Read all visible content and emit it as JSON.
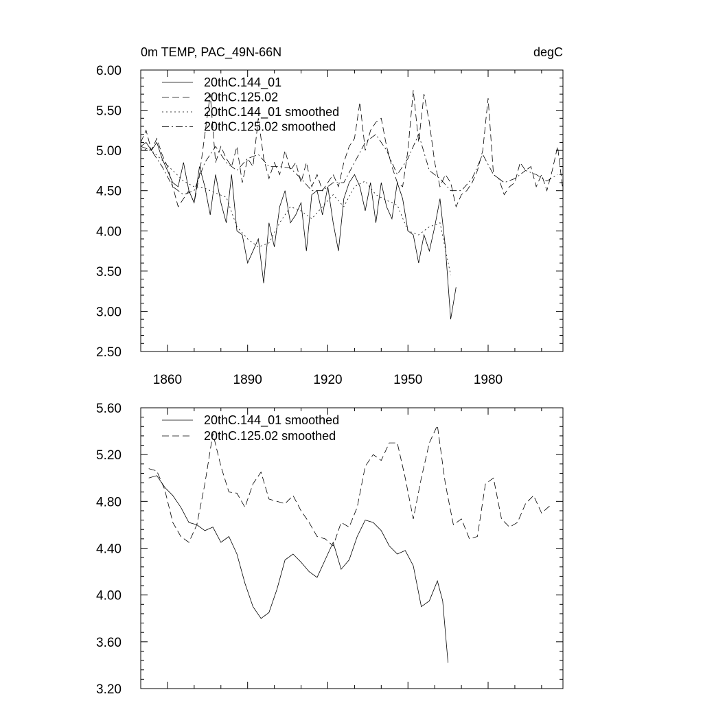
{
  "chart_data": [
    {
      "type": "line",
      "title": "0m TEMP, PAC_49N-66N",
      "units": "degC",
      "xlim": [
        1850,
        2008
      ],
      "ylim": [
        2.5,
        6.0
      ],
      "xticks": [
        1860,
        1890,
        1920,
        1950,
        1980
      ],
      "xtick_labels": [
        "1860",
        "1890",
        "1920",
        "1950",
        "1980"
      ],
      "yticks": [
        2.5,
        3.0,
        3.5,
        4.0,
        4.5,
        5.0,
        5.5,
        6.0
      ],
      "ytick_labels": [
        "2.50",
        "3.00",
        "3.50",
        "4.00",
        "4.50",
        "5.00",
        "5.50",
        "6.00"
      ],
      "grid": false,
      "legend_position": "top-left",
      "series": [
        {
          "name": "20thC.144_01",
          "style": "solid",
          "x": [
            1850,
            1852,
            1854,
            1856,
            1858,
            1860,
            1862,
            1864,
            1866,
            1868,
            1870,
            1872,
            1874,
            1876,
            1878,
            1880,
            1882,
            1884,
            1886,
            1888,
            1890,
            1892,
            1894,
            1896,
            1898,
            1900,
            1902,
            1904,
            1906,
            1908,
            1910,
            1912,
            1914,
            1916,
            1918,
            1920,
            1922,
            1924,
            1926,
            1928,
            1930,
            1932,
            1934,
            1936,
            1938,
            1940,
            1942,
            1944,
            1946,
            1948,
            1950,
            1952,
            1954,
            1956,
            1958,
            1960,
            1962,
            1964,
            1966,
            1968
          ],
          "y": [
            5.05,
            5.1,
            5.0,
            5.1,
            4.9,
            4.75,
            4.6,
            4.55,
            4.85,
            4.5,
            4.35,
            4.8,
            4.55,
            4.2,
            4.7,
            4.35,
            4.1,
            4.7,
            4.0,
            3.95,
            3.6,
            3.75,
            3.9,
            3.35,
            4.1,
            3.8,
            4.3,
            4.5,
            4.1,
            4.2,
            4.35,
            3.75,
            4.45,
            4.5,
            4.2,
            4.55,
            4.1,
            3.75,
            4.4,
            4.6,
            4.7,
            4.55,
            4.25,
            4.6,
            4.1,
            4.6,
            4.3,
            4.15,
            4.6,
            4.4,
            4.0,
            3.95,
            3.6,
            3.95,
            3.75,
            4.05,
            4.4,
            3.8,
            2.9,
            3.3
          ]
        },
        {
          "name": "20thC.125.02",
          "style": "dashed",
          "x": [
            1850,
            1852,
            1854,
            1856,
            1858,
            1860,
            1862,
            1864,
            1866,
            1868,
            1870,
            1872,
            1874,
            1876,
            1878,
            1880,
            1882,
            1884,
            1886,
            1888,
            1890,
            1892,
            1894,
            1896,
            1898,
            1900,
            1902,
            1904,
            1906,
            1908,
            1910,
            1912,
            1914,
            1916,
            1918,
            1920,
            1922,
            1924,
            1926,
            1928,
            1930,
            1932,
            1934,
            1936,
            1938,
            1940,
            1942,
            1944,
            1946,
            1948,
            1950,
            1952,
            1954,
            1956,
            1958,
            1960,
            1962,
            1964,
            1966,
            1968,
            1970,
            1972,
            1974,
            1976,
            1978,
            1980,
            1982,
            1984,
            1986,
            1988,
            1990,
            1992,
            1994,
            1996,
            1998,
            2000,
            2002,
            2004,
            2006,
            2008
          ],
          "y": [
            5.1,
            5.25,
            5.0,
            5.15,
            4.95,
            4.8,
            4.55,
            4.3,
            4.4,
            4.5,
            4.35,
            4.7,
            5.2,
            5.7,
            4.85,
            5.05,
            4.9,
            4.8,
            5.05,
            4.6,
            4.9,
            4.8,
            5.4,
            4.9,
            4.65,
            4.85,
            4.7,
            5.0,
            4.75,
            4.85,
            4.6,
            4.85,
            4.55,
            4.7,
            4.5,
            4.6,
            4.7,
            4.55,
            4.85,
            5.05,
            5.15,
            5.6,
            5.0,
            5.25,
            5.35,
            5.4,
            5.05,
            4.8,
            4.6,
            4.55,
            5.0,
            5.75,
            5.1,
            5.7,
            5.35,
            4.85,
            4.55,
            4.7,
            4.6,
            4.3,
            4.45,
            4.5,
            4.6,
            4.75,
            5.0,
            5.65,
            4.7,
            4.65,
            4.45,
            4.55,
            4.6,
            4.85,
            4.75,
            4.8,
            4.55,
            4.7,
            4.5,
            4.75,
            5.05,
            4.5
          ]
        },
        {
          "name": "20thC.144_01 smoothed",
          "style": "dotted",
          "x": [
            1850,
            1854,
            1858,
            1862,
            1866,
            1870,
            1874,
            1878,
            1882,
            1886,
            1890,
            1894,
            1898,
            1902,
            1906,
            1910,
            1914,
            1918,
            1922,
            1926,
            1930,
            1934,
            1938,
            1942,
            1946,
            1950,
            1954,
            1958,
            1962,
            1966
          ],
          "y": [
            5.02,
            5.0,
            4.88,
            4.75,
            4.62,
            4.55,
            4.53,
            4.47,
            4.42,
            4.05,
            3.9,
            3.8,
            3.85,
            4.1,
            4.3,
            4.25,
            4.15,
            4.3,
            4.45,
            4.3,
            4.55,
            4.62,
            4.45,
            4.38,
            4.32,
            4.0,
            3.95,
            4.05,
            4.1,
            3.45
          ]
        },
        {
          "name": "20thC.125.02 smoothed",
          "style": "dashdot",
          "x": [
            1850,
            1854,
            1858,
            1862,
            1866,
            1870,
            1874,
            1878,
            1882,
            1886,
            1890,
            1894,
            1898,
            1902,
            1906,
            1910,
            1914,
            1918,
            1922,
            1926,
            1930,
            1934,
            1938,
            1942,
            1946,
            1950,
            1954,
            1958,
            1962,
            1966,
            1970,
            1974,
            1978,
            1982,
            1986,
            1990,
            1994,
            1998,
            2002,
            2006
          ],
          "y": [
            5.05,
            5.0,
            4.8,
            4.55,
            4.45,
            4.5,
            4.85,
            5.05,
            4.85,
            4.75,
            4.9,
            4.95,
            4.8,
            4.8,
            4.78,
            4.65,
            4.5,
            4.5,
            4.6,
            4.6,
            4.85,
            5.1,
            5.2,
            5.0,
            4.7,
            4.9,
            5.2,
            4.75,
            4.65,
            4.5,
            4.5,
            4.65,
            4.95,
            4.7,
            4.6,
            4.65,
            4.75,
            4.7,
            4.62,
            4.7
          ]
        }
      ]
    },
    {
      "type": "line",
      "title": "",
      "units": "",
      "xlim": [
        1850,
        2008
      ],
      "ylim": [
        3.2,
        5.6
      ],
      "xticks": [
        1860,
        1890,
        1920,
        1950,
        1980
      ],
      "xtick_labels": [],
      "yticks": [
        3.2,
        3.6,
        4.0,
        4.4,
        4.8,
        5.2,
        5.6
      ],
      "ytick_labels": [
        "3.20",
        "3.60",
        "4.00",
        "4.40",
        "4.80",
        "5.20",
        "5.60"
      ],
      "grid": false,
      "legend_position": "top-left",
      "series": [
        {
          "name": "20thC.144_01 smoothed",
          "style": "solid",
          "x": [
            1853,
            1856,
            1859,
            1862,
            1865,
            1868,
            1871,
            1874,
            1877,
            1880,
            1883,
            1886,
            1889,
            1892,
            1895,
            1898,
            1901,
            1904,
            1907,
            1910,
            1913,
            1916,
            1919,
            1922,
            1925,
            1928,
            1931,
            1934,
            1937,
            1940,
            1943,
            1946,
            1949,
            1952,
            1955,
            1958,
            1961,
            1963,
            1965
          ],
          "y": [
            5.0,
            5.02,
            4.92,
            4.85,
            4.75,
            4.62,
            4.6,
            4.55,
            4.58,
            4.45,
            4.5,
            4.35,
            4.1,
            3.9,
            3.8,
            3.85,
            4.05,
            4.3,
            4.35,
            4.28,
            4.2,
            4.15,
            4.3,
            4.45,
            4.22,
            4.3,
            4.5,
            4.64,
            4.62,
            4.55,
            4.42,
            4.35,
            4.38,
            4.25,
            3.9,
            3.95,
            4.12,
            3.95,
            3.42
          ]
        },
        {
          "name": "20thC.125.02 smoothed",
          "style": "dashed",
          "x": [
            1853,
            1856,
            1859,
            1862,
            1865,
            1868,
            1871,
            1874,
            1877,
            1880,
            1883,
            1886,
            1889,
            1892,
            1895,
            1898,
            1901,
            1904,
            1907,
            1910,
            1913,
            1916,
            1919,
            1922,
            1925,
            1928,
            1931,
            1934,
            1937,
            1940,
            1943,
            1946,
            1949,
            1952,
            1955,
            1958,
            1961,
            1964,
            1967,
            1970,
            1973,
            1976,
            1979,
            1982,
            1985,
            1988,
            1991,
            1994,
            1997,
            2000,
            2003
          ],
          "y": [
            5.08,
            5.06,
            4.9,
            4.62,
            4.5,
            4.45,
            4.6,
            4.95,
            5.38,
            5.1,
            4.88,
            4.87,
            4.75,
            4.95,
            5.05,
            4.82,
            4.8,
            4.78,
            4.85,
            4.72,
            4.62,
            4.5,
            4.48,
            4.42,
            4.62,
            4.58,
            4.75,
            5.1,
            5.2,
            5.15,
            5.3,
            5.3,
            5.0,
            4.65,
            5.0,
            5.3,
            5.45,
            4.95,
            4.6,
            4.65,
            4.48,
            4.5,
            4.95,
            5.0,
            4.65,
            4.58,
            4.62,
            4.78,
            4.85,
            4.7,
            4.76
          ]
        }
      ]
    }
  ]
}
